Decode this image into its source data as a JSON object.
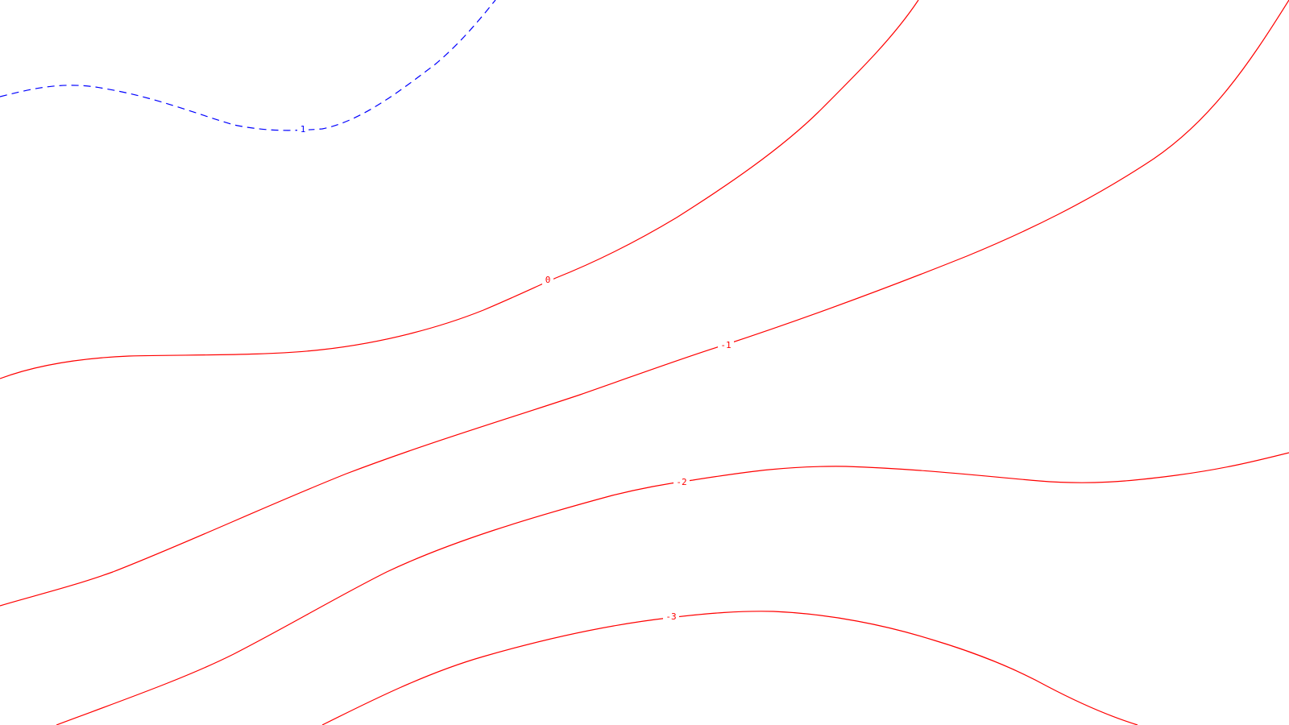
{
  "map": {
    "background": "#ffffff",
    "contours": [
      {
        "id": "contour-1",
        "level": 1,
        "label": "1",
        "color": "#0000ff",
        "style": "dashed"
      },
      {
        "id": "contour-0",
        "level": 0,
        "label": "0",
        "color": "#ff0000",
        "style": "solid"
      },
      {
        "id": "contour-neg1",
        "level": -1,
        "label": "-1",
        "color": "#ff0000",
        "style": "solid"
      },
      {
        "id": "contour-neg2",
        "level": -2,
        "label": "-2",
        "color": "#ff0000",
        "style": "solid"
      },
      {
        "id": "contour-neg3",
        "level": -3,
        "label": "-3",
        "color": "#ff0000",
        "style": "solid"
      }
    ]
  }
}
